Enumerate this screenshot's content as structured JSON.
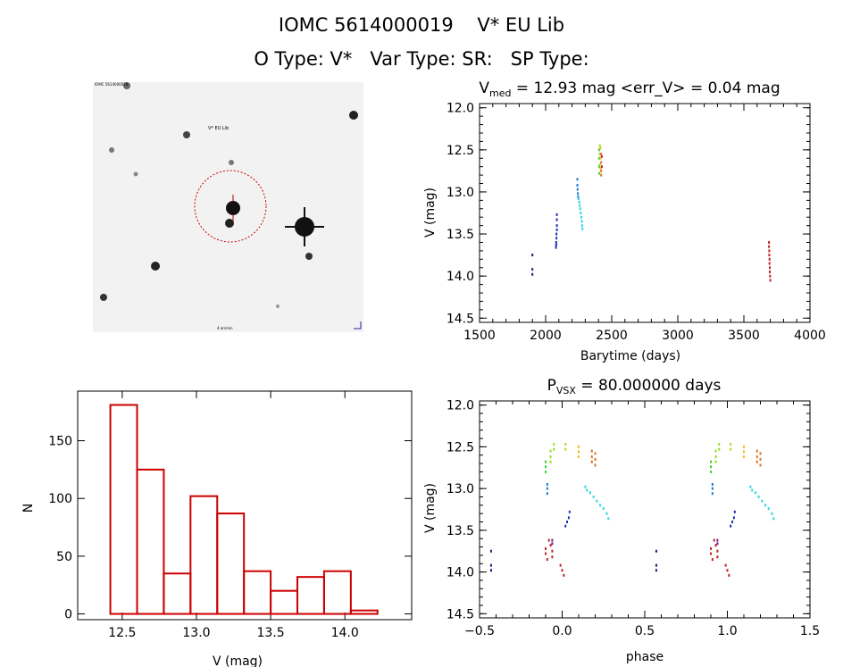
{
  "header": {
    "line1": "IOMC 5614000019    V* EU Lib",
    "line2": "O Type: V*   Var Type: SR:   SP Type:"
  },
  "finder": {
    "target_label": "V* EU Lib",
    "corner_tl": "IOMC 5614000019",
    "bottom_label": "4 arcmin",
    "circle_color": "#cc0000"
  },
  "chart_data": [
    {
      "id": "lightcurve",
      "type": "scatter",
      "title_main": "V",
      "title_sub": "med",
      "title_rest": " = 12.93 mag <err_V> = 0.04 mag",
      "xlabel": "Barytime (days)",
      "ylabel": "V (mag)",
      "xlim": [
        1500,
        4000
      ],
      "ylim": [
        14.55,
        11.95
      ],
      "xticks": [
        1500,
        2000,
        2500,
        3000,
        3500,
        4000
      ],
      "yticks": [
        12.0,
        12.5,
        13.0,
        13.5,
        14.0,
        14.5
      ],
      "points": [
        {
          "x": 1900,
          "y": 13.75,
          "color": "#1a1a80"
        },
        {
          "x": 1900,
          "y": 13.92,
          "color": "#1a1a80"
        },
        {
          "x": 1900,
          "y": 13.98,
          "color": "#1a1a80"
        },
        {
          "x": 2085,
          "y": 13.27,
          "color": "#2030b0"
        },
        {
          "x": 2085,
          "y": 13.33,
          "color": "#2030b0"
        },
        {
          "x": 2085,
          "y": 13.4,
          "color": "#2030b0"
        },
        {
          "x": 2085,
          "y": 13.45,
          "color": "#2030b0"
        },
        {
          "x": 2082,
          "y": 13.5,
          "color": "#2030b0"
        },
        {
          "x": 2082,
          "y": 13.55,
          "color": "#2030b0"
        },
        {
          "x": 2080,
          "y": 13.6,
          "color": "#2030b0"
        },
        {
          "x": 2080,
          "y": 13.63,
          "color": "#2030b0"
        },
        {
          "x": 2078,
          "y": 13.66,
          "color": "#2030b0"
        },
        {
          "x": 2240,
          "y": 12.85,
          "color": "#1e7ad0"
        },
        {
          "x": 2240,
          "y": 12.92,
          "color": "#1e7ad0"
        },
        {
          "x": 2242,
          "y": 12.97,
          "color": "#1e7ad0"
        },
        {
          "x": 2244,
          "y": 13.02,
          "color": "#1e7ad0"
        },
        {
          "x": 2246,
          "y": 13.06,
          "color": "#1e7ad0"
        },
        {
          "x": 2250,
          "y": 13.08,
          "color": "#30d8e0"
        },
        {
          "x": 2254,
          "y": 13.12,
          "color": "#30d8e0"
        },
        {
          "x": 2258,
          "y": 13.16,
          "color": "#30d8e0"
        },
        {
          "x": 2262,
          "y": 13.2,
          "color": "#30d8e0"
        },
        {
          "x": 2266,
          "y": 13.25,
          "color": "#30d8e0"
        },
        {
          "x": 2270,
          "y": 13.3,
          "color": "#30d8e0"
        },
        {
          "x": 2274,
          "y": 13.35,
          "color": "#30d8e0"
        },
        {
          "x": 2276,
          "y": 13.4,
          "color": "#30d8e0"
        },
        {
          "x": 2278,
          "y": 13.44,
          "color": "#30d8e0"
        },
        {
          "x": 2405,
          "y": 12.5,
          "color": "#40d030"
        },
        {
          "x": 2405,
          "y": 12.6,
          "color": "#40d030"
        },
        {
          "x": 2405,
          "y": 12.7,
          "color": "#40d030"
        },
        {
          "x": 2405,
          "y": 12.78,
          "color": "#40d030"
        },
        {
          "x": 2410,
          "y": 12.45,
          "color": "#90e020"
        },
        {
          "x": 2410,
          "y": 12.55,
          "color": "#90e020"
        },
        {
          "x": 2410,
          "y": 12.68,
          "color": "#90e020"
        },
        {
          "x": 2415,
          "y": 12.48,
          "color": "#e8c020"
        },
        {
          "x": 2415,
          "y": 12.6,
          "color": "#e8c020"
        },
        {
          "x": 2415,
          "y": 12.72,
          "color": "#e8c020"
        },
        {
          "x": 2420,
          "y": 12.55,
          "color": "#e07020"
        },
        {
          "x": 2420,
          "y": 12.65,
          "color": "#e07020"
        },
        {
          "x": 2420,
          "y": 12.75,
          "color": "#e07020"
        },
        {
          "x": 2420,
          "y": 12.8,
          "color": "#e07020"
        },
        {
          "x": 2425,
          "y": 12.58,
          "color": "#c02020"
        },
        {
          "x": 2425,
          "y": 12.7,
          "color": "#c02020"
        },
        {
          "x": 3690,
          "y": 13.6,
          "color": "#c02020"
        },
        {
          "x": 3690,
          "y": 13.65,
          "color": "#c02020"
        },
        {
          "x": 3692,
          "y": 13.7,
          "color": "#c02020"
        },
        {
          "x": 3692,
          "y": 13.75,
          "color": "#c02020"
        },
        {
          "x": 3694,
          "y": 13.8,
          "color": "#c02020"
        },
        {
          "x": 3694,
          "y": 13.85,
          "color": "#c02020"
        },
        {
          "x": 3696,
          "y": 13.9,
          "color": "#c02020"
        },
        {
          "x": 3696,
          "y": 13.95,
          "color": "#c02020"
        },
        {
          "x": 3698,
          "y": 14.0,
          "color": "#c02020"
        },
        {
          "x": 3700,
          "y": 14.05,
          "color": "#c02020"
        }
      ]
    },
    {
      "id": "histogram",
      "type": "bar",
      "title": "",
      "xlabel": "V (mag)",
      "ylabel": "N",
      "xlim": [
        12.2,
        14.45
      ],
      "ylim": [
        -5,
        193
      ],
      "xticks": [
        12.5,
        13.0,
        13.5,
        14.0
      ],
      "xticklabels": [
        "12.5",
        "13.0",
        "13.5",
        "14.0"
      ],
      "yticks": [
        0,
        50,
        100,
        150
      ],
      "bin_edges": [
        12.42,
        12.6,
        12.78,
        12.96,
        13.14,
        13.32,
        13.5,
        13.68,
        13.86,
        14.04,
        14.22
      ],
      "values": [
        181,
        125,
        35,
        102,
        87,
        37,
        20,
        32,
        37,
        3
      ],
      "color": "#cc0000"
    },
    {
      "id": "phased",
      "type": "scatter",
      "title_main": "P",
      "title_sub": "VSX",
      "title_rest": " = 80.000000 days",
      "xlabel": "phase",
      "ylabel": "V (mag)",
      "xlim": [
        -0.5,
        1.5
      ],
      "ylim": [
        14.55,
        11.95
      ],
      "xticks": [
        -0.5,
        0.0,
        0.5,
        1.0,
        1.5
      ],
      "xticklabels": [
        "−0.5",
        "0.0",
        "0.5",
        "1.0",
        "1.5"
      ],
      "yticks": [
        12.0,
        12.5,
        13.0,
        13.5,
        14.0,
        14.5
      ],
      "points": [
        {
          "x": -0.43,
          "y": 13.75,
          "color": "#1a1a80"
        },
        {
          "x": -0.43,
          "y": 13.92,
          "color": "#1a1a80"
        },
        {
          "x": -0.43,
          "y": 13.98,
          "color": "#1a1a80"
        },
        {
          "x": -0.1,
          "y": 12.68,
          "color": "#40d030"
        },
        {
          "x": -0.1,
          "y": 12.74,
          "color": "#40d030"
        },
        {
          "x": -0.1,
          "y": 12.8,
          "color": "#40d030"
        },
        {
          "x": -0.07,
          "y": 12.55,
          "color": "#90e020"
        },
        {
          "x": -0.07,
          "y": 12.62,
          "color": "#90e020"
        },
        {
          "x": -0.07,
          "y": 12.68,
          "color": "#90e020"
        },
        {
          "x": -0.05,
          "y": 12.47,
          "color": "#90e020"
        },
        {
          "x": -0.05,
          "y": 12.53,
          "color": "#90e020"
        },
        {
          "x": 0.02,
          "y": 12.47,
          "color": "#a8e020"
        },
        {
          "x": 0.02,
          "y": 12.53,
          "color": "#a8e020"
        },
        {
          "x": 0.1,
          "y": 12.5,
          "color": "#e8c020"
        },
        {
          "x": 0.1,
          "y": 12.56,
          "color": "#e8c020"
        },
        {
          "x": 0.1,
          "y": 12.62,
          "color": "#e8c020"
        },
        {
          "x": 0.18,
          "y": 12.55,
          "color": "#e07020"
        },
        {
          "x": 0.18,
          "y": 12.62,
          "color": "#e07020"
        },
        {
          "x": 0.18,
          "y": 12.68,
          "color": "#e07020"
        },
        {
          "x": 0.2,
          "y": 12.58,
          "color": "#e07020"
        },
        {
          "x": 0.2,
          "y": 12.65,
          "color": "#e07020"
        },
        {
          "x": 0.2,
          "y": 12.72,
          "color": "#e07020"
        },
        {
          "x": -0.09,
          "y": 12.95,
          "color": "#1e7ad0"
        },
        {
          "x": -0.09,
          "y": 13.0,
          "color": "#1e7ad0"
        },
        {
          "x": -0.09,
          "y": 13.06,
          "color": "#1e7ad0"
        },
        {
          "x": 0.14,
          "y": 12.98,
          "color": "#30d8e0"
        },
        {
          "x": 0.15,
          "y": 13.02,
          "color": "#30d8e0"
        },
        {
          "x": 0.17,
          "y": 13.05,
          "color": "#30d8e0"
        },
        {
          "x": 0.19,
          "y": 13.1,
          "color": "#30d8e0"
        },
        {
          "x": 0.21,
          "y": 13.15,
          "color": "#30d8e0"
        },
        {
          "x": 0.23,
          "y": 13.2,
          "color": "#30d8e0"
        },
        {
          "x": 0.25,
          "y": 13.24,
          "color": "#30d8e0"
        },
        {
          "x": 0.27,
          "y": 13.3,
          "color": "#30d8e0"
        },
        {
          "x": 0.28,
          "y": 13.36,
          "color": "#30d8e0"
        },
        {
          "x": 0.02,
          "y": 13.45,
          "color": "#2030b0"
        },
        {
          "x": 0.03,
          "y": 13.4,
          "color": "#2030b0"
        },
        {
          "x": 0.04,
          "y": 13.35,
          "color": "#2030b0"
        },
        {
          "x": 0.045,
          "y": 13.28,
          "color": "#2030b0"
        },
        {
          "x": -0.06,
          "y": 13.62,
          "color": "#7a1a90"
        },
        {
          "x": -0.06,
          "y": 13.66,
          "color": "#7a1a90"
        },
        {
          "x": -0.1,
          "y": 13.72,
          "color": "#c02020"
        },
        {
          "x": -0.1,
          "y": 13.78,
          "color": "#c02020"
        },
        {
          "x": -0.09,
          "y": 13.85,
          "color": "#c02020"
        },
        {
          "x": -0.08,
          "y": 13.62,
          "color": "#c02020"
        },
        {
          "x": -0.07,
          "y": 13.68,
          "color": "#c02020"
        },
        {
          "x": -0.06,
          "y": 13.75,
          "color": "#c02020"
        },
        {
          "x": -0.06,
          "y": 13.82,
          "color": "#c02020"
        },
        {
          "x": -0.01,
          "y": 13.92,
          "color": "#c02020"
        },
        {
          "x": 0.0,
          "y": 13.98,
          "color": "#c02020"
        },
        {
          "x": 0.01,
          "y": 14.04,
          "color": "#c02020"
        },
        {
          "x": 0.57,
          "y": 13.75,
          "color": "#1a1a80"
        },
        {
          "x": 0.57,
          "y": 13.92,
          "color": "#1a1a80"
        },
        {
          "x": 0.57,
          "y": 13.98,
          "color": "#1a1a80"
        },
        {
          "x": 0.9,
          "y": 12.68,
          "color": "#40d030"
        },
        {
          "x": 0.9,
          "y": 12.74,
          "color": "#40d030"
        },
        {
          "x": 0.9,
          "y": 12.8,
          "color": "#40d030"
        },
        {
          "x": 0.93,
          "y": 12.55,
          "color": "#90e020"
        },
        {
          "x": 0.93,
          "y": 12.62,
          "color": "#90e020"
        },
        {
          "x": 0.93,
          "y": 12.68,
          "color": "#90e020"
        },
        {
          "x": 0.95,
          "y": 12.47,
          "color": "#90e020"
        },
        {
          "x": 0.95,
          "y": 12.53,
          "color": "#90e020"
        },
        {
          "x": 1.02,
          "y": 12.47,
          "color": "#a8e020"
        },
        {
          "x": 1.02,
          "y": 12.53,
          "color": "#a8e020"
        },
        {
          "x": 1.1,
          "y": 12.5,
          "color": "#e8c020"
        },
        {
          "x": 1.1,
          "y": 12.56,
          "color": "#e8c020"
        },
        {
          "x": 1.1,
          "y": 12.62,
          "color": "#e8c020"
        },
        {
          "x": 1.18,
          "y": 12.55,
          "color": "#e07020"
        },
        {
          "x": 1.18,
          "y": 12.62,
          "color": "#e07020"
        },
        {
          "x": 1.18,
          "y": 12.68,
          "color": "#e07020"
        },
        {
          "x": 1.2,
          "y": 12.58,
          "color": "#e07020"
        },
        {
          "x": 1.2,
          "y": 12.65,
          "color": "#e07020"
        },
        {
          "x": 1.2,
          "y": 12.72,
          "color": "#e07020"
        },
        {
          "x": 0.91,
          "y": 12.95,
          "color": "#1e7ad0"
        },
        {
          "x": 0.91,
          "y": 13.0,
          "color": "#1e7ad0"
        },
        {
          "x": 0.91,
          "y": 13.06,
          "color": "#1e7ad0"
        },
        {
          "x": 1.14,
          "y": 12.98,
          "color": "#30d8e0"
        },
        {
          "x": 1.15,
          "y": 13.02,
          "color": "#30d8e0"
        },
        {
          "x": 1.17,
          "y": 13.05,
          "color": "#30d8e0"
        },
        {
          "x": 1.19,
          "y": 13.1,
          "color": "#30d8e0"
        },
        {
          "x": 1.21,
          "y": 13.15,
          "color": "#30d8e0"
        },
        {
          "x": 1.23,
          "y": 13.2,
          "color": "#30d8e0"
        },
        {
          "x": 1.25,
          "y": 13.24,
          "color": "#30d8e0"
        },
        {
          "x": 1.27,
          "y": 13.3,
          "color": "#30d8e0"
        },
        {
          "x": 1.28,
          "y": 13.36,
          "color": "#30d8e0"
        },
        {
          "x": 1.02,
          "y": 13.45,
          "color": "#2030b0"
        },
        {
          "x": 1.03,
          "y": 13.4,
          "color": "#2030b0"
        },
        {
          "x": 1.04,
          "y": 13.35,
          "color": "#2030b0"
        },
        {
          "x": 1.045,
          "y": 13.28,
          "color": "#2030b0"
        },
        {
          "x": 0.94,
          "y": 13.62,
          "color": "#7a1a90"
        },
        {
          "x": 0.94,
          "y": 13.66,
          "color": "#7a1a90"
        },
        {
          "x": 0.9,
          "y": 13.72,
          "color": "#c02020"
        },
        {
          "x": 0.9,
          "y": 13.78,
          "color": "#c02020"
        },
        {
          "x": 0.91,
          "y": 13.85,
          "color": "#c02020"
        },
        {
          "x": 0.92,
          "y": 13.62,
          "color": "#c02020"
        },
        {
          "x": 0.93,
          "y": 13.68,
          "color": "#c02020"
        },
        {
          "x": 0.94,
          "y": 13.75,
          "color": "#c02020"
        },
        {
          "x": 0.94,
          "y": 13.82,
          "color": "#c02020"
        },
        {
          "x": 0.99,
          "y": 13.92,
          "color": "#c02020"
        },
        {
          "x": 1.0,
          "y": 13.98,
          "color": "#c02020"
        },
        {
          "x": 1.01,
          "y": 14.04,
          "color": "#c02020"
        }
      ]
    }
  ]
}
